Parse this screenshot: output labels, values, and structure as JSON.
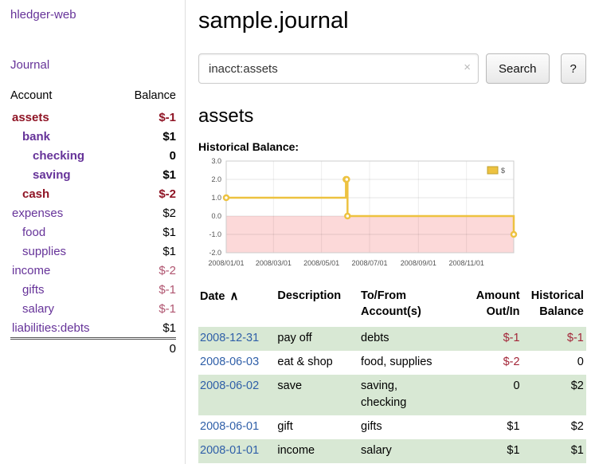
{
  "sidebar": {
    "app_title": "hledger-web",
    "nav": {
      "journal": "Journal"
    },
    "accounts_table": {
      "account_header": "Account",
      "balance_header": "Balance",
      "rows": [
        {
          "name": "assets",
          "balance": "$-1",
          "level": 0,
          "in_acct": true
        },
        {
          "name": "bank",
          "balance": "$1",
          "level": 1,
          "in_acct": true
        },
        {
          "name": "checking",
          "balance": "0",
          "level": 2,
          "in_acct": true
        },
        {
          "name": "saving",
          "balance": "$1",
          "level": 2,
          "in_acct": true
        },
        {
          "name": "cash",
          "balance": "$-2",
          "level": 1,
          "in_acct": true
        },
        {
          "name": "expenses",
          "balance": "$2",
          "level": 0,
          "in_acct": false
        },
        {
          "name": "food",
          "balance": "$1",
          "level": 1,
          "in_acct": false
        },
        {
          "name": "supplies",
          "balance": "$1",
          "level": 1,
          "in_acct": false
        },
        {
          "name": "income",
          "balance": "$-2",
          "level": 0,
          "in_acct": false
        },
        {
          "name": "gifts",
          "balance": "$-1",
          "level": 1,
          "in_acct": false
        },
        {
          "name": "salary",
          "balance": "$-1",
          "level": 1,
          "in_acct": false
        },
        {
          "name": "liabilities:debts",
          "balance": "$1",
          "level": 0,
          "in_acct": false
        }
      ],
      "total": "0"
    }
  },
  "header": {
    "title": "sample.journal"
  },
  "search": {
    "value": "inacct:assets",
    "clear_icon": "×",
    "search_button": "Search",
    "help_button": "?"
  },
  "register": {
    "heading": "assets",
    "chart_title": "Historical Balance:",
    "table": {
      "headers": {
        "date": "Date",
        "sort_icon": "∧",
        "description": "Description",
        "accounts": "To/From\nAccount(s)",
        "amount": "Amount\nOut/In",
        "balance": "Historical\nBalance"
      },
      "rows": [
        {
          "date": "2008-12-31",
          "description": "pay off",
          "accounts": "debts",
          "amount": "$-1",
          "balance": "$-1"
        },
        {
          "date": "2008-06-03",
          "description": "eat & shop",
          "accounts": "food, supplies",
          "amount": "$-2",
          "balance": "0"
        },
        {
          "date": "2008-06-02",
          "description": "save",
          "accounts": "saving,\nchecking",
          "amount": "0",
          "balance": "$2"
        },
        {
          "date": "2008-06-01",
          "description": "gift",
          "accounts": "gifts",
          "amount": "$1",
          "balance": "$2"
        },
        {
          "date": "2008-01-01",
          "description": "income",
          "accounts": "salary",
          "amount": "$1",
          "balance": "$1"
        }
      ]
    }
  },
  "chart_data": {
    "type": "line",
    "step": true,
    "title": "Historical Balance",
    "legend": [
      "$"
    ],
    "legend_position": "top-right",
    "grid": true,
    "ylim": [
      -2.0,
      3.0
    ],
    "yticks": [
      "3.0",
      "2.0",
      "1.0",
      "0.0",
      "-1.0",
      "-2.0"
    ],
    "xticks": [
      "2008/01/01",
      "2008/03/01",
      "2008/05/01",
      "2008/07/01",
      "2008/09/01",
      "2008/11/01"
    ],
    "xrange": [
      "2008-01-01",
      "2008-12-31"
    ],
    "series": [
      {
        "name": "$",
        "color": "#edc240",
        "points": [
          {
            "date": "2008-01-01",
            "value": 1
          },
          {
            "date": "2008-06-01",
            "value": 2
          },
          {
            "date": "2008-06-02",
            "value": 2
          },
          {
            "date": "2008-06-03",
            "value": 0
          },
          {
            "date": "2008-12-31",
            "value": -1
          }
        ]
      }
    ],
    "negative_region_color": "#fcd9d9"
  }
}
